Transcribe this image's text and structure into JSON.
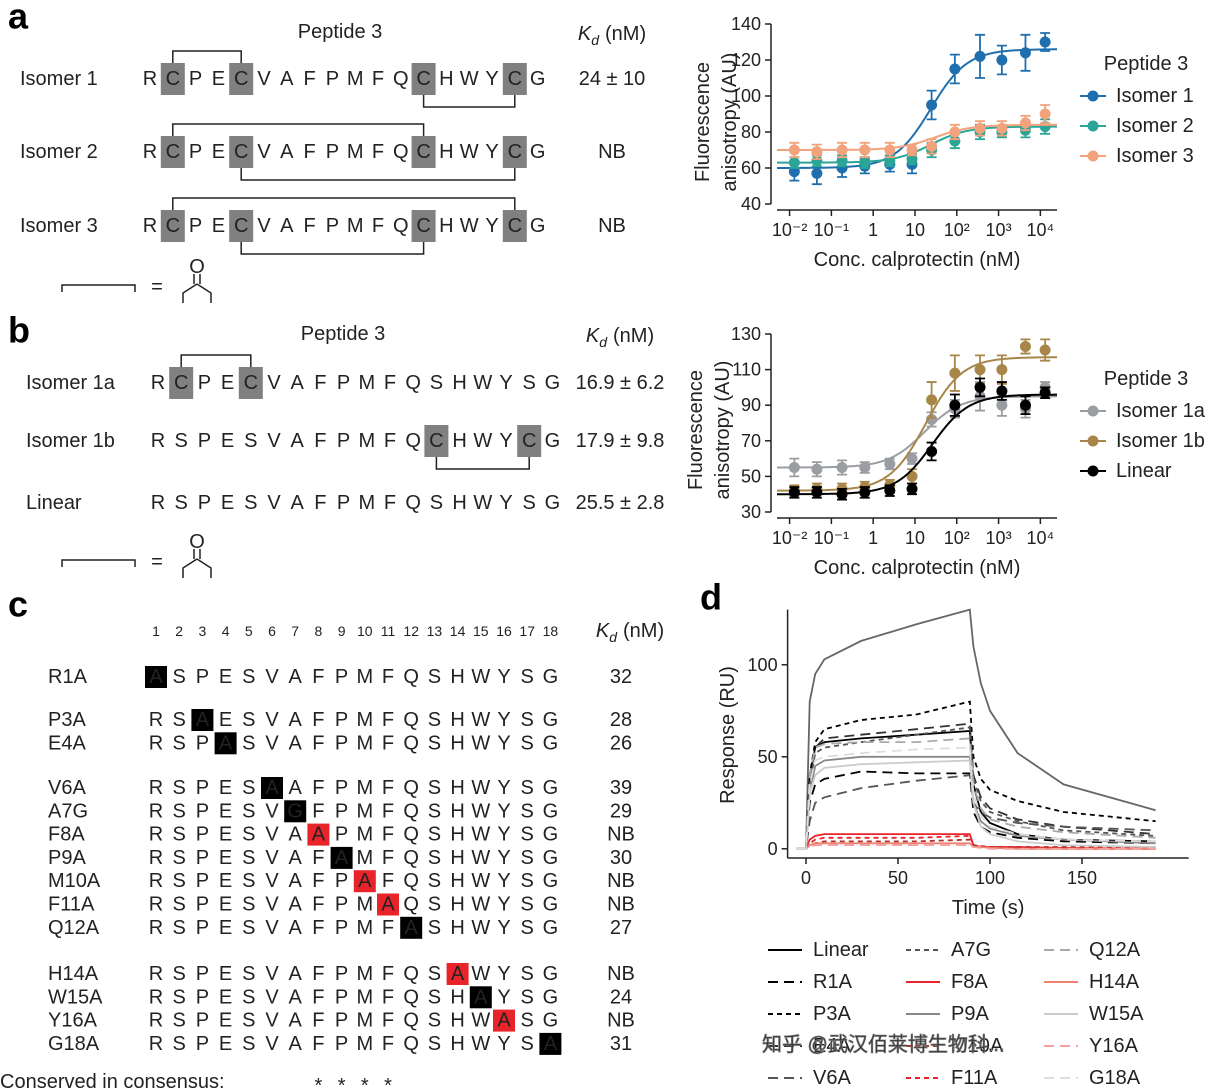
{
  "panel_letters": [
    "a",
    "b",
    "c",
    "d"
  ],
  "table_a": {
    "peptide": "Peptide 3",
    "kd_header": {
      "symbol": "K",
      "subscript": "d",
      "unit": "(nM)"
    },
    "box_color": "#808080",
    "rows": [
      {
        "name": "Isomer 1",
        "sequence": [
          "R",
          "C",
          "P",
          "E",
          "C",
          "V",
          "A",
          "F",
          "P",
          "M",
          "F",
          "Q",
          "C",
          "H",
          "W",
          "Y",
          "C",
          "G"
        ],
        "boxed": [
          1,
          4,
          12,
          16
        ],
        "bridges_top": [
          [
            1,
            4
          ]
        ],
        "bridges_bottom": [
          [
            12,
            16
          ]
        ],
        "kd": "24 ± 10"
      },
      {
        "name": "Isomer 2",
        "sequence": [
          "R",
          "C",
          "P",
          "E",
          "C",
          "V",
          "A",
          "F",
          "P",
          "M",
          "F",
          "Q",
          "C",
          "H",
          "W",
          "Y",
          "C",
          "G"
        ],
        "boxed": [
          1,
          4,
          12,
          16
        ],
        "bridges_top": [
          [
            1,
            12
          ]
        ],
        "bridges_bottom": [
          [
            4,
            16
          ]
        ],
        "kd": "NB"
      },
      {
        "name": "Isomer 3",
        "sequence": [
          "R",
          "C",
          "P",
          "E",
          "C",
          "V",
          "A",
          "F",
          "P",
          "M",
          "F",
          "Q",
          "C",
          "H",
          "W",
          "Y",
          "C",
          "G"
        ],
        "boxed": [
          1,
          4,
          12,
          16
        ],
        "bridges_top": [
          [
            1,
            16
          ]
        ],
        "bridges_bottom": [
          [
            4,
            12
          ]
        ],
        "kd": "NB"
      }
    ],
    "legend": {
      "equals": "=",
      "atom": "O"
    }
  },
  "table_b": {
    "peptide": "Peptide 3",
    "kd_header": {
      "symbol": "K",
      "subscript": "d",
      "unit": "(nM)"
    },
    "box_color": "#808080",
    "rows": [
      {
        "name": "Isomer 1a",
        "sequence": [
          "R",
          "C",
          "P",
          "E",
          "C",
          "V",
          "A",
          "F",
          "P",
          "M",
          "F",
          "Q",
          "S",
          "H",
          "W",
          "Y",
          "S",
          "G"
        ],
        "boxed": [
          1,
          4
        ],
        "bridges_top": [
          [
            1,
            4
          ]
        ],
        "bridges_bottom": [],
        "kd": "16.9 ± 6.2"
      },
      {
        "name": "Isomer 1b",
        "sequence": [
          "R",
          "S",
          "P",
          "E",
          "S",
          "V",
          "A",
          "F",
          "P",
          "M",
          "F",
          "Q",
          "C",
          "H",
          "W",
          "Y",
          "C",
          "G"
        ],
        "boxed": [
          12,
          16
        ],
        "bridges_top": [],
        "bridges_bottom": [
          [
            12,
            16
          ]
        ],
        "kd": "17.9 ± 9.8"
      },
      {
        "name": "Linear",
        "sequence": [
          "R",
          "S",
          "P",
          "E",
          "S",
          "V",
          "A",
          "F",
          "P",
          "M",
          "F",
          "Q",
          "S",
          "H",
          "W",
          "Y",
          "S",
          "G"
        ],
        "boxed": [],
        "bridges_top": [],
        "bridges_bottom": [],
        "kd": "25.5 ± 2.8"
      }
    ],
    "legend": {
      "equals": "=",
      "atom": "O"
    }
  },
  "table_c": {
    "positions": [
      1,
      2,
      3,
      4,
      5,
      6,
      7,
      8,
      9,
      10,
      11,
      12,
      13,
      14,
      15,
      16,
      17,
      18
    ],
    "kd_header": {
      "symbol": "K",
      "subscript": "d",
      "unit": "(nM)"
    },
    "sequence": [
      "R",
      "S",
      "P",
      "E",
      "S",
      "V",
      "A",
      "F",
      "P",
      "M",
      "F",
      "Q",
      "S",
      "H",
      "W",
      "Y",
      "S",
      "G"
    ],
    "groups": [
      [
        {
          "name": "R1A",
          "position": 1,
          "residue": "A",
          "highlight": "#000000",
          "kd": 32,
          "kd_color": "#222222"
        }
      ],
      [
        {
          "name": "P3A",
          "position": 3,
          "residue": "A",
          "highlight": "#000000",
          "kd": 28,
          "kd_color": "#222222"
        },
        {
          "name": "E4A",
          "position": 4,
          "residue": "A",
          "highlight": "#000000",
          "kd": 26,
          "kd_color": "#222222"
        }
      ],
      [
        {
          "name": "V6A",
          "position": 6,
          "residue": "A",
          "highlight": "#000000",
          "kd": 39,
          "kd_color": "#222222"
        },
        {
          "name": "A7G",
          "position": 7,
          "residue": "G",
          "highlight": "#000000",
          "kd": 29,
          "kd_color": "#222222"
        },
        {
          "name": "F8A",
          "position": 8,
          "residue": "A",
          "highlight": "#e8242a",
          "kd": "NB",
          "kd_color": "#e8242a"
        },
        {
          "name": "P9A",
          "position": 9,
          "residue": "A",
          "highlight": "#000000",
          "kd": 30,
          "kd_color": "#222222"
        },
        {
          "name": "M10A",
          "position": 10,
          "residue": "A",
          "highlight": "#e8242a",
          "kd": "NB",
          "kd_color": "#e8242a"
        },
        {
          "name": "F11A",
          "position": 11,
          "residue": "A",
          "highlight": "#e8242a",
          "kd": "NB",
          "kd_color": "#e8242a"
        },
        {
          "name": "Q12A",
          "position": 12,
          "residue": "A",
          "highlight": "#000000",
          "kd": 27,
          "kd_color": "#222222"
        }
      ],
      [
        {
          "name": "H14A",
          "position": 14,
          "residue": "A",
          "highlight": "#e8242a",
          "kd": "NB",
          "kd_color": "#e8242a"
        },
        {
          "name": "W15A",
          "position": 15,
          "residue": "A",
          "highlight": "#000000",
          "kd": 24,
          "kd_color": "#222222"
        },
        {
          "name": "Y16A",
          "position": 16,
          "residue": "A",
          "highlight": "#e8242a",
          "kd": "NB",
          "kd_color": "#e8242a"
        },
        {
          "name": "G18A",
          "position": 18,
          "residue": "A",
          "highlight": "#000000",
          "kd": 31,
          "kd_color": "#222222"
        }
      ]
    ],
    "conserved_label": "Conserved in consensus:",
    "conserved_mark": "*",
    "conserved_positions": [
      8,
      9,
      10,
      11
    ]
  },
  "chart_data": [
    {
      "type": "scatter",
      "ylabel": [
        "Fluorescence",
        "anisotropy (AU)"
      ],
      "xlabel": "Conc. calprotectin (nM)",
      "legend_title": "Peptide 3",
      "xlog": true,
      "xlim": [
        0.005,
        25000
      ],
      "xticks": [
        {
          "value": 0.01,
          "label": "10⁻²"
        },
        {
          "value": 0.1,
          "label": "10⁻¹"
        },
        1,
        10,
        {
          "value": 100,
          "label": "10²"
        },
        {
          "value": 1000,
          "label": "10³"
        },
        {
          "value": 10000,
          "label": "10⁴"
        }
      ],
      "ylim": [
        40,
        140
      ],
      "yticks": [
        40,
        60,
        80,
        100,
        120,
        140
      ],
      "x": [
        0.013,
        0.045,
        0.18,
        0.63,
        2.5,
        8.5,
        25,
        90,
        360,
        1200,
        4400,
        13000
      ],
      "series": [
        {
          "name": "Isomer 1",
          "color": "#1f6fae",
          "values": [
            58,
            57,
            60,
            61,
            62,
            62,
            95,
            115,
            122,
            120,
            124,
            130
          ],
          "errors": [
            5,
            6,
            5,
            4,
            4,
            5,
            8,
            8,
            12,
            8,
            10,
            5
          ],
          "fit": {
            "bottom": 60,
            "top": 126,
            "ec50": 24
          }
        },
        {
          "name": "Isomer 2",
          "color": "#2aa596",
          "values": [
            63,
            64,
            64,
            63,
            64,
            65,
            70,
            75,
            80,
            80,
            81,
            83
          ],
          "errors": [
            3,
            3,
            3,
            3,
            3,
            3,
            4,
            4,
            4,
            3,
            4,
            4
          ],
          "fit": {
            "bottom": 63,
            "top": 83,
            "ec50": 24
          }
        },
        {
          "name": "Isomer 3",
          "color": "#f2a27c",
          "values": [
            70,
            69,
            70,
            70,
            70,
            70,
            72,
            80,
            82,
            82,
            85,
            90
          ],
          "errors": [
            4,
            4,
            4,
            4,
            4,
            3,
            4,
            4,
            4,
            4,
            4,
            5
          ],
          "fit": {
            "bottom": 70,
            "top": 84,
            "ec50": 30
          }
        }
      ]
    },
    {
      "type": "scatter",
      "ylabel": [
        "Fluorescence",
        "anisotropy (AU)"
      ],
      "xlabel": "Conc. calprotectin (nM)",
      "legend_title": "Peptide 3",
      "xlog": true,
      "xlim": [
        0.005,
        25000
      ],
      "xticks": [
        {
          "value": 0.01,
          "label": "10⁻²"
        },
        {
          "value": 0.1,
          "label": "10⁻¹"
        },
        1,
        10,
        {
          "value": 100,
          "label": "10²"
        },
        {
          "value": 1000,
          "label": "10³"
        },
        {
          "value": 10000,
          "label": "10⁴"
        }
      ],
      "ylim": [
        30,
        130
      ],
      "yticks": [
        30,
        50,
        70,
        90,
        110,
        130
      ],
      "x": [
        0.013,
        0.045,
        0.18,
        0.63,
        2.5,
        8.5,
        25,
        90,
        360,
        1200,
        4400,
        13000
      ],
      "series": [
        {
          "name": "Isomer 1a",
          "color": "#9a9da2",
          "values": [
            55,
            54,
            55,
            55,
            57,
            60,
            82,
            88,
            95,
            90,
            88,
            100
          ],
          "errors": [
            5,
            4,
            4,
            3,
            3,
            3,
            4,
            5,
            8,
            6,
            5,
            3
          ],
          "fit": {
            "bottom": 55,
            "top": 95,
            "ec50": 17
          }
        },
        {
          "name": "Isomer 1b",
          "color": "#a8864a",
          "values": [
            42,
            43,
            43,
            44,
            45,
            50,
            93,
            108,
            110,
            110,
            123,
            121
          ],
          "errors": [
            3,
            3,
            3,
            3,
            3,
            4,
            10,
            10,
            8,
            8,
            4,
            6
          ],
          "fit": {
            "bottom": 42,
            "top": 117,
            "ec50": 18
          }
        },
        {
          "name": "Linear",
          "color": "#000000",
          "values": [
            41,
            41,
            40,
            41,
            42,
            43,
            64,
            90,
            100,
            98,
            90,
            97
          ],
          "errors": [
            3,
            3,
            3,
            3,
            3,
            3,
            5,
            6,
            5,
            5,
            5,
            3
          ],
          "fit": {
            "bottom": 40,
            "top": 96,
            "ec50": 26
          }
        }
      ]
    },
    {
      "type": "line",
      "xlabel": "Time (s)",
      "ylabel": "Response (RU)",
      "xlim": [
        -10,
        208
      ],
      "xticks": [
        0,
        50,
        100,
        150
      ],
      "ylim": [
        -5,
        130
      ],
      "yticks": [
        0,
        50,
        100
      ],
      "x": [
        -5,
        0,
        2,
        5,
        10,
        30,
        60,
        89,
        91,
        95,
        100,
        115,
        140,
        190
      ],
      "series": [
        {
          "color": "#666666",
          "dash": "solid",
          "values": [
            0,
            0,
            80,
            95,
            103,
            113,
            122,
            130,
            110,
            90,
            75,
            52,
            35,
            21
          ]
        },
        {
          "name": "Linear",
          "color": "#000000",
          "dash": "solid",
          "values": [
            0,
            0,
            40,
            55,
            58,
            60,
            62,
            64,
            35,
            20,
            14,
            8,
            5,
            4
          ]
        },
        {
          "name": "R1A",
          "color": "#000000",
          "dash": "long",
          "values": [
            0,
            0,
            25,
            35,
            38,
            42,
            41,
            41,
            20,
            12,
            9,
            6,
            4,
            3
          ]
        },
        {
          "name": "P3A",
          "color": "#000000",
          "dash": "short",
          "values": [
            0,
            0,
            40,
            58,
            65,
            70,
            73,
            80,
            50,
            38,
            32,
            26,
            20,
            15
          ]
        },
        {
          "name": "E4A",
          "color": "#333333",
          "dash": "long",
          "values": [
            0,
            0,
            35,
            55,
            60,
            62,
            65,
            68,
            40,
            28,
            22,
            16,
            12,
            8
          ]
        },
        {
          "name": "V6A",
          "color": "#555555",
          "dash": "long",
          "values": [
            0,
            0,
            15,
            25,
            28,
            33,
            37,
            40,
            25,
            20,
            17,
            14,
            12,
            10
          ]
        },
        {
          "name": "A7G",
          "color": "#555555",
          "dash": "short",
          "values": [
            0,
            0,
            35,
            52,
            55,
            58,
            62,
            66,
            38,
            26,
            20,
            15,
            10,
            7
          ]
        },
        {
          "name": "F8A",
          "color": "#e8242a",
          "dash": "solid",
          "values": [
            0,
            0,
            5,
            7,
            8,
            8,
            8,
            8,
            2,
            1,
            1,
            1,
            0.5,
            0
          ]
        },
        {
          "name": "P9A",
          "color": "#888888",
          "dash": "solid",
          "values": [
            0,
            0,
            30,
            45,
            48,
            50,
            50,
            50,
            25,
            15,
            11,
            7,
            5,
            3
          ]
        },
        {
          "name": "M10A",
          "color": "#b0302a",
          "dash": "short",
          "values": [
            0,
            0,
            2,
            3,
            4,
            4,
            4,
            5,
            2,
            1.5,
            1,
            1,
            1,
            1
          ]
        },
        {
          "name": "F11A",
          "color": "#e8242a",
          "dash": "short",
          "values": [
            0,
            0,
            3,
            5,
            6,
            6,
            6,
            7,
            2,
            1,
            1,
            0.5,
            0,
            0
          ]
        },
        {
          "name": "Q12A",
          "color": "#aaaaaa",
          "dash": "long",
          "values": [
            0,
            0,
            40,
            55,
            57,
            58,
            58,
            60,
            35,
            22,
            16,
            12,
            9,
            6
          ]
        },
        {
          "name": "H14A",
          "color": "#f08070",
          "dash": "solid",
          "values": [
            0,
            0,
            2,
            3,
            3,
            3,
            3,
            3,
            1,
            1,
            0.5,
            0,
            0,
            0
          ]
        },
        {
          "name": "W15A",
          "color": "#cccccc",
          "dash": "solid",
          "values": [
            0,
            0,
            30,
            40,
            44,
            46,
            47,
            48,
            25,
            12,
            8,
            4,
            2,
            1
          ]
        },
        {
          "name": "Y16A",
          "color": "#f4a0a0",
          "dash": "long",
          "values": [
            0,
            0,
            1,
            2,
            2,
            2,
            2,
            2,
            1,
            0.5,
            0,
            0,
            0,
            0
          ]
        },
        {
          "name": "G18A",
          "color": "#dddddd",
          "dash": "long",
          "values": [
            0,
            0,
            35,
            48,
            50,
            52,
            54,
            55,
            30,
            18,
            12,
            8,
            5,
            4
          ]
        }
      ]
    }
  ],
  "watermark": "知乎 @武汉佰莱博生物科..."
}
